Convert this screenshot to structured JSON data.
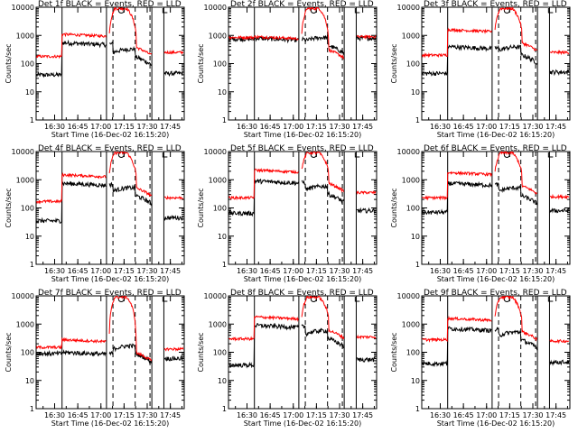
{
  "figure": {
    "title_template": "Det {n} BLACK = Events, RED = LLD",
    "xlabel": "Start Time (16-Dec-02 16:15:20)",
    "ylabel": "Counts/sec",
    "colors": {
      "events": "#000000",
      "lld": "#ff0000",
      "axes": "#000000"
    }
  },
  "chart_data": {
    "type": "line",
    "yscale": "log",
    "xlim": [
      16.3,
      17.9
    ],
    "ylim": [
      1,
      10000
    ],
    "x_ticks": [
      16.5,
      16.75,
      17.0,
      17.25,
      17.5,
      17.75
    ],
    "x_tick_labels": [
      "16:30",
      "16:45",
      "17:00",
      "17:15",
      "17:30",
      "17:45"
    ],
    "y_ticks": [
      1,
      10,
      100,
      1000,
      10000
    ],
    "y_tick_labels": [
      "1",
      "10",
      "100",
      "1000",
      "10000"
    ],
    "markers": {
      "solid_lines": [
        16.58,
        17.06,
        17.55,
        17.68
      ],
      "dashed_lines": [
        17.13,
        17.37,
        17.53
      ]
    },
    "panels": [
      {
        "detector": "1",
        "title": "Det 1f BLACK = Events, RED = LLD",
        "series": [
          {
            "name": "Events",
            "color": "#000000",
            "pre": 40,
            "plateau": 550,
            "dip": 250,
            "post": 45
          },
          {
            "name": "LLD",
            "color": "#ff0000",
            "pre": 180,
            "plateau": 1100,
            "peak": 9000,
            "post": 250
          }
        ]
      },
      {
        "detector": "2",
        "title": "Det 2f BLACK = Events, RED = LLD",
        "series": [
          {
            "name": "Events",
            "color": "#000000",
            "pre": 750,
            "plateau": 800,
            "dip": 650,
            "post": 800
          },
          {
            "name": "LLD",
            "color": "#ff0000",
            "pre": 850,
            "plateau": 900,
            "peak": 9000,
            "post": 900
          }
        ]
      },
      {
        "detector": "3",
        "title": "Det 3f BLACK = Events, RED = LLD",
        "series": [
          {
            "name": "Events",
            "color": "#000000",
            "pre": 45,
            "plateau": 400,
            "dip": 300,
            "post": 50
          },
          {
            "name": "LLD",
            "color": "#ff0000",
            "pre": 200,
            "plateau": 1600,
            "peak": 9000,
            "post": 250
          }
        ]
      },
      {
        "detector": "4",
        "title": "Det 4f BLACK = Events, RED = LLD",
        "series": [
          {
            "name": "Events",
            "color": "#000000",
            "pre": 35,
            "plateau": 750,
            "dip": 400,
            "post": 45
          },
          {
            "name": "LLD",
            "color": "#ff0000",
            "pre": 170,
            "plateau": 1500,
            "peak": 9000,
            "post": 230
          }
        ]
      },
      {
        "detector": "5",
        "title": "Det 5f BLACK = Events, RED = LLD",
        "series": [
          {
            "name": "Events",
            "color": "#000000",
            "pre": 65,
            "plateau": 900,
            "dip": 450,
            "post": 80
          },
          {
            "name": "LLD",
            "color": "#ff0000",
            "pre": 230,
            "plateau": 2200,
            "peak": 9000,
            "post": 350
          }
        ]
      },
      {
        "detector": "6",
        "title": "Det 6f BLACK = Events, RED = LLD",
        "series": [
          {
            "name": "Events",
            "color": "#000000",
            "pre": 70,
            "plateau": 750,
            "dip": 400,
            "post": 80
          },
          {
            "name": "LLD",
            "color": "#ff0000",
            "pre": 230,
            "plateau": 1800,
            "peak": 9000,
            "post": 250
          }
        ]
      },
      {
        "detector": "7",
        "title": "Det 7f BLACK = Events, RED = LLD",
        "series": [
          {
            "name": "Events",
            "color": "#000000",
            "pre": 90,
            "plateau": 100,
            "dip": 130,
            "post": 60
          },
          {
            "name": "LLD",
            "color": "#ff0000",
            "pre": 150,
            "plateau": 280,
            "peak": 9000,
            "post": 130
          }
        ]
      },
      {
        "detector": "8",
        "title": "Det 8f BLACK = Events, RED = LLD",
        "series": [
          {
            "name": "Events",
            "color": "#000000",
            "pre": 35,
            "plateau": 900,
            "dip": 450,
            "post": 55
          },
          {
            "name": "LLD",
            "color": "#ff0000",
            "pre": 300,
            "plateau": 1800,
            "peak": 9000,
            "post": 350
          }
        ]
      },
      {
        "detector": "9",
        "title": "Det 9f BLACK = Events, RED = LLD",
        "series": [
          {
            "name": "Events",
            "color": "#000000",
            "pre": 40,
            "plateau": 700,
            "dip": 400,
            "post": 45
          },
          {
            "name": "LLD",
            "color": "#ff0000",
            "pre": 280,
            "plateau": 1600,
            "peak": 9000,
            "post": 250
          }
        ]
      }
    ]
  }
}
